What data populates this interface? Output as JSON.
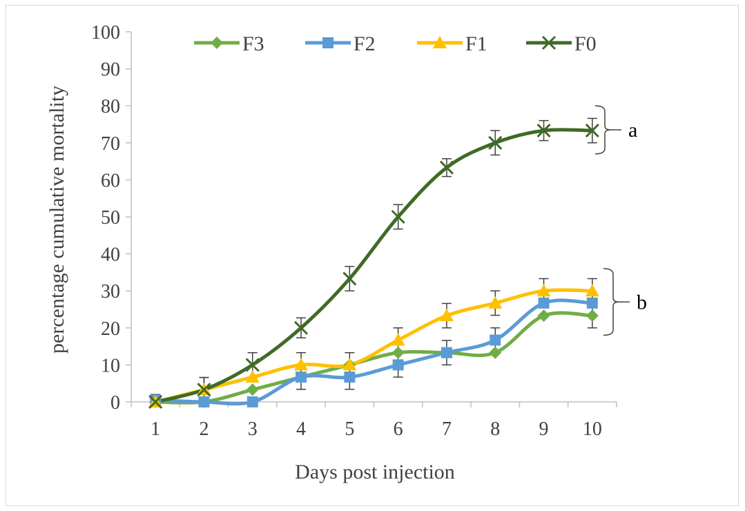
{
  "chart_data": {
    "type": "line",
    "title": "",
    "xlabel": "Days post injection",
    "ylabel": "percentage cumulative mortality",
    "x": [
      1,
      2,
      3,
      4,
      5,
      6,
      7,
      8,
      9,
      10
    ],
    "ylim": [
      0,
      100
    ],
    "yticks": [
      0,
      10,
      20,
      30,
      40,
      50,
      60,
      70,
      80,
      90,
      100
    ],
    "grid": false,
    "legend_position": "top",
    "series": [
      {
        "name": "F3",
        "color": "#70ad47",
        "marker": "diamond",
        "values": [
          0,
          0,
          3.3,
          6.7,
          10,
          13.3,
          13.3,
          13.3,
          23.3,
          23.3
        ],
        "errors": [
          0,
          0,
          0,
          0,
          0,
          0,
          0,
          0,
          0,
          3.3
        ]
      },
      {
        "name": "F2",
        "color": "#5b9bd5",
        "marker": "square",
        "values": [
          0.5,
          0,
          0,
          6.7,
          6.7,
          10,
          13.3,
          16.7,
          26.7,
          26.7
        ],
        "errors": [
          1.5,
          0,
          0,
          3.3,
          3.3,
          3.3,
          3.3,
          3.3,
          0,
          0
        ]
      },
      {
        "name": "F1",
        "color": "#ffc000",
        "marker": "triangle",
        "values": [
          0,
          3.3,
          6.7,
          10,
          10,
          16.7,
          23.3,
          26.7,
          30,
          30
        ],
        "errors": [
          0,
          3.3,
          0,
          3.3,
          3.3,
          3.3,
          3.3,
          3.3,
          3.3,
          3.3
        ]
      },
      {
        "name": "F0",
        "color": "#3f6b26",
        "marker": "x",
        "values": [
          0,
          3.3,
          10,
          20,
          33.3,
          50,
          63.3,
          70,
          73.3,
          73.3
        ],
        "errors": [
          0,
          3.3,
          3.3,
          2.7,
          3.3,
          3.3,
          2.4,
          3.3,
          2.7,
          3.3
        ]
      }
    ],
    "annotations": [
      {
        "text": "a",
        "range": [
          67,
          80
        ]
      },
      {
        "text": "b",
        "range": [
          18,
          36
        ]
      }
    ]
  }
}
